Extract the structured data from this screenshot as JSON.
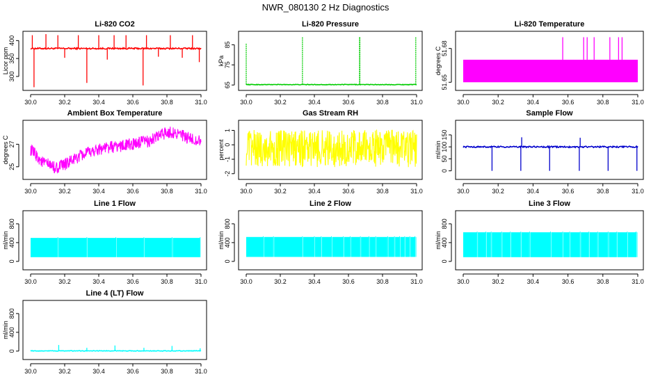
{
  "figure": {
    "title": "NWR_080130  2 Hz Diagnostics"
  },
  "chart_data": [
    {
      "type": "line",
      "name": "li820-co2",
      "title": "Li-820 CO2",
      "xlabel": "",
      "ylabel": "Licor ppm",
      "xlim": [
        30.0,
        31.0
      ],
      "ylim": [
        265,
        422
      ],
      "xticks": [
        30.0,
        30.2,
        30.4,
        30.6,
        30.8,
        31.0
      ],
      "xtick_labels": [
        "30.0",
        "30.2",
        "30.4",
        "30.6",
        "30.8",
        "31.0"
      ],
      "yticks": [
        300,
        350,
        400
      ],
      "ytick_labels": [
        "300",
        "350",
        "400"
      ],
      "color": "#ff0000",
      "series": [
        {
          "name": "CO2",
          "baseline": 378,
          "noise": 2,
          "spikes": [
            [
              30.01,
              415
            ],
            [
              30.02,
              270
            ],
            [
              30.09,
              418
            ],
            [
              30.16,
              415
            ],
            [
              30.2,
              352
            ],
            [
              30.28,
              415
            ],
            [
              30.33,
              282
            ],
            [
              30.4,
              415
            ],
            [
              30.45,
              347
            ],
            [
              30.49,
              415
            ],
            [
              30.56,
              415
            ],
            [
              30.66,
              275
            ],
            [
              30.68,
              415
            ],
            [
              30.75,
              355
            ],
            [
              30.82,
              415
            ],
            [
              30.89,
              352
            ],
            [
              30.95,
              415
            ],
            [
              30.99,
              340
            ]
          ]
        }
      ]
    },
    {
      "type": "line",
      "name": "li820-pressure",
      "title": "Li-820 Pressure",
      "xlabel": "",
      "ylabel": "kPa",
      "xlim": [
        30.0,
        31.0
      ],
      "ylim": [
        63,
        91
      ],
      "xticks": [
        30.0,
        30.2,
        30.4,
        30.6,
        30.8,
        31.0
      ],
      "xtick_labels": [
        "30.0",
        "30.2",
        "30.4",
        "30.6",
        "30.8",
        "31.0"
      ],
      "yticks": [
        65,
        75,
        85
      ],
      "ytick_labels": [
        "65",
        "75",
        "85"
      ],
      "color": "#00cc00",
      "series": [
        {
          "name": "Pressure",
          "baseline": 65.2,
          "noise": 0.15,
          "spikes": [
            [
              30.0,
              85.5
            ],
            [
              30.33,
              89
            ],
            [
              30.665,
              89
            ],
            [
              30.666,
              89
            ],
            [
              30.667,
              89
            ],
            [
              30.995,
              89
            ]
          ]
        }
      ]
    },
    {
      "type": "area",
      "name": "li820-temperature",
      "title": "Li-820 Temperature",
      "xlabel": "",
      "ylabel": "degrees C",
      "xlim": [
        30.0,
        31.0
      ],
      "ylim": [
        51.644,
        51.694
      ],
      "xticks": [
        30.0,
        30.2,
        30.4,
        30.6,
        30.8,
        31.0
      ],
      "xtick_labels": [
        "30.0",
        "30.2",
        "30.4",
        "30.6",
        "30.8",
        "31.0"
      ],
      "yticks": [
        51.65,
        51.68
      ],
      "ytick_labels": [
        "51.65",
        "51.68"
      ],
      "color": "#ff00ff",
      "series": [
        {
          "name": "Temperature",
          "low": 51.65,
          "high": 51.67,
          "spikes": [
            [
              30.57,
              51.69
            ],
            [
              30.69,
              51.69
            ],
            [
              30.71,
              51.69
            ],
            [
              30.75,
              51.69
            ],
            [
              30.84,
              51.69
            ],
            [
              30.89,
              51.69
            ],
            [
              30.91,
              51.69
            ]
          ]
        }
      ]
    },
    {
      "type": "line",
      "name": "ambient-box-temperature",
      "title": "Ambient Box Temperature",
      "xlabel": "",
      "ylabel": "degrees C",
      "xlim": [
        30.0,
        31.0
      ],
      "ylim": [
        24.0,
        29.0
      ],
      "xticks": [
        30.0,
        30.2,
        30.4,
        30.6,
        30.8,
        31.0
      ],
      "xtick_labels": [
        "30.0",
        "30.2",
        "30.4",
        "30.6",
        "30.8",
        "31.0"
      ],
      "yticks": [
        25,
        27
      ],
      "ytick_labels": [
        "25",
        "27"
      ],
      "color": "#ff00ff",
      "series": [
        {
          "name": "Ambient",
          "noise": 0.55,
          "trend": [
            [
              30.0,
              26.5
            ],
            [
              30.07,
              25.4
            ],
            [
              30.15,
              24.9
            ],
            [
              30.2,
              25.2
            ],
            [
              30.3,
              26.0
            ],
            [
              30.4,
              26.6
            ],
            [
              30.5,
              26.8
            ],
            [
              30.6,
              27.0
            ],
            [
              30.7,
              27.3
            ],
            [
              30.8,
              28.1
            ],
            [
              30.86,
              28.0
            ],
            [
              30.92,
              27.5
            ],
            [
              31.0,
              27.3
            ]
          ]
        }
      ]
    },
    {
      "type": "line",
      "name": "gas-stream-rh",
      "title": "Gas Stream RH",
      "xlabel": "",
      "ylabel": "percent",
      "xlim": [
        30.0,
        31.0
      ],
      "ylim": [
        -2.3,
        1.6
      ],
      "xticks": [
        30.0,
        30.2,
        30.4,
        30.6,
        30.8,
        31.0
      ],
      "xtick_labels": [
        "30.0",
        "30.2",
        "30.4",
        "30.6",
        "30.8",
        "31.0"
      ],
      "yticks": [
        -2,
        -1,
        0,
        1
      ],
      "ytick_labels": [
        "-2",
        "-1",
        "0",
        "1"
      ],
      "color": "#ffff00",
      "series": [
        {
          "name": "RH",
          "baseline": -0.25,
          "noise": 1.3
        }
      ]
    },
    {
      "type": "line",
      "name": "sample-flow",
      "title": "Sample Flow",
      "xlabel": "",
      "ylabel": "ml/min",
      "xlim": [
        30.0,
        31.0
      ],
      "ylim": [
        -30,
        205
      ],
      "xticks": [
        30.0,
        30.2,
        30.4,
        30.6,
        30.8,
        31.0
      ],
      "xtick_labels": [
        "30.0",
        "30.2",
        "30.4",
        "30.6",
        "30.8",
        "31.0"
      ],
      "yticks": [
        0,
        50,
        100,
        150
      ],
      "ytick_labels": [
        "0",
        "50",
        "100",
        "150"
      ],
      "color": "#0000cc",
      "series": [
        {
          "name": "Flow",
          "baseline": 100,
          "noise": 3,
          "spikes": [
            [
              30.165,
              0
            ],
            [
              30.33,
              0
            ],
            [
              30.335,
              140
            ],
            [
              30.495,
              0
            ],
            [
              30.665,
              0
            ],
            [
              30.67,
              138
            ],
            [
              30.83,
              0
            ],
            [
              30.995,
              0
            ]
          ]
        }
      ]
    },
    {
      "type": "band",
      "name": "line-1-flow",
      "title": "Line 1 Flow",
      "xlabel": "",
      "ylabel": "ml/min",
      "xlim": [
        30.0,
        31.0
      ],
      "ylim": [
        -150,
        1050
      ],
      "xticks": [
        30.0,
        30.2,
        30.4,
        30.6,
        30.8,
        31.0
      ],
      "xtick_labels": [
        "30.0",
        "30.2",
        "30.4",
        "30.6",
        "30.8",
        "31.0"
      ],
      "yticks": [
        0,
        400,
        800
      ],
      "ytick_labels": [
        "0",
        "400",
        "800"
      ],
      "color": "#00ffff",
      "series": [
        {
          "name": "Line 1",
          "low": 90,
          "high": 500,
          "gaps": [
            30.16,
            30.33,
            30.5,
            30.665,
            30.83,
            30.995
          ]
        }
      ]
    },
    {
      "type": "band",
      "name": "line-2-flow",
      "title": "Line 2 Flow",
      "xlabel": "",
      "ylabel": "ml/min",
      "xlim": [
        30.0,
        31.0
      ],
      "ylim": [
        -150,
        1050
      ],
      "xticks": [
        30.0,
        30.2,
        30.4,
        30.6,
        30.8,
        31.0
      ],
      "xtick_labels": [
        "30.0",
        "30.2",
        "30.4",
        "30.6",
        "30.8",
        "31.0"
      ],
      "yticks": [
        0,
        400,
        800
      ],
      "ytick_labels": [
        "0",
        "400",
        "800"
      ],
      "color": "#00ffff",
      "series": [
        {
          "name": "Line 2",
          "low": 95,
          "high": 520,
          "gaps": [
            30.1,
            30.16,
            30.33,
            30.4,
            30.44,
            30.5,
            30.57,
            30.61,
            30.67,
            30.72,
            30.76,
            30.83,
            30.87,
            30.9,
            30.93,
            30.96,
            30.99
          ]
        }
      ]
    },
    {
      "type": "band",
      "name": "line-3-flow",
      "title": "Line 3 Flow",
      "xlabel": "",
      "ylabel": "ml/min",
      "xlim": [
        30.0,
        31.0
      ],
      "ylim": [
        -150,
        1050
      ],
      "xticks": [
        30.0,
        30.2,
        30.4,
        30.6,
        30.8,
        31.0
      ],
      "xtick_labels": [
        "30.0",
        "30.2",
        "30.4",
        "30.6",
        "30.8",
        "31.0"
      ],
      "yticks": [
        0,
        400,
        800
      ],
      "ytick_labels": [
        "0",
        "400",
        "800"
      ],
      "color": "#00ffff",
      "series": [
        {
          "name": "Line 3",
          "low": 90,
          "high": 620,
          "gaps": [
            30.08,
            30.13,
            30.16,
            30.22,
            30.27,
            30.33,
            30.38,
            30.5,
            30.57,
            30.61,
            30.67,
            30.72,
            30.77,
            30.83,
            30.88,
            30.94,
            30.99
          ]
        }
      ]
    },
    {
      "type": "line",
      "name": "line-4-lt-flow",
      "title": "Line 4 (LT) Flow",
      "xlabel": "",
      "ylabel": "ml/min",
      "xlim": [
        30.0,
        31.0
      ],
      "ylim": [
        -150,
        1050
      ],
      "xticks": [
        30.0,
        30.2,
        30.4,
        30.6,
        30.8,
        31.0
      ],
      "xtick_labels": [
        "30.0",
        "30.2",
        "30.4",
        "30.6",
        "30.8",
        "31.0"
      ],
      "yticks": [
        0,
        400,
        800
      ],
      "ytick_labels": [
        "0",
        "400",
        "800"
      ],
      "color": "#00ffff",
      "series": [
        {
          "name": "Line 4",
          "baseline": 5,
          "noise": 6,
          "spikes": [
            [
              30.165,
              130
            ],
            [
              30.33,
              70
            ],
            [
              30.495,
              120
            ],
            [
              30.665,
              70
            ],
            [
              30.83,
              110
            ],
            [
              30.995,
              60
            ]
          ]
        }
      ]
    }
  ]
}
